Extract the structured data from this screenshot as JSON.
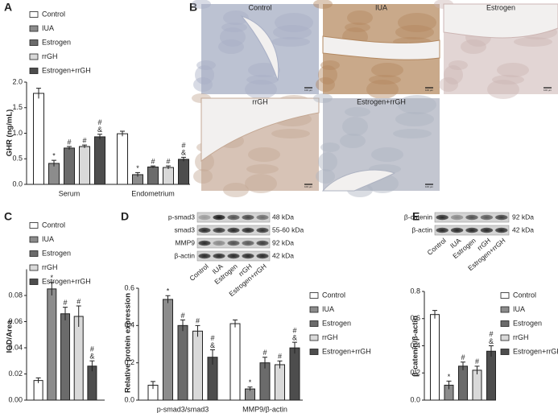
{
  "panel_b": {
    "label": "B",
    "scale_bar": "100 μm",
    "images": [
      "Control",
      "IUA",
      "Estrogen",
      "rrGH",
      "Estrogen+rrGH"
    ]
  },
  "chart_data": [
    {
      "type": "bar",
      "panel": "A",
      "ylabel": "GHR (ng/mL)",
      "categories": [
        "Serum",
        "Endometrium"
      ],
      "ylim": [
        0,
        2.0
      ],
      "yticks": [
        {
          "value": 0,
          "label": "0.0"
        },
        {
          "value": 0.5,
          "label": "0.5"
        },
        {
          "value": 1.0,
          "label": "1.0"
        },
        {
          "value": 1.5,
          "label": "1.5"
        },
        {
          "value": 2.0,
          "label": "2.0"
        }
      ],
      "series": [
        {
          "name": "Control",
          "color": "#ffffff",
          "values": [
            1.78,
            0.99
          ],
          "errors": [
            0.1,
            0.05
          ]
        },
        {
          "name": "IUA",
          "color": "#8c8c8c",
          "values": [
            0.41,
            0.19
          ],
          "errors": [
            0.06,
            0.04
          ],
          "annotations": [
            [
              "*"
            ],
            [
              "*"
            ]
          ]
        },
        {
          "name": "Estrogen",
          "color": "#6b6b6b",
          "values": [
            0.71,
            0.34
          ],
          "errors": [
            0.03,
            0.02
          ],
          "annotations": [
            [
              "#"
            ],
            [
              "#"
            ]
          ]
        },
        {
          "name": "rrGH",
          "color": "#d9d9d9",
          "values": [
            0.74,
            0.33
          ],
          "errors": [
            0.03,
            0.03
          ],
          "annotations": [
            [
              "#"
            ],
            [
              "#"
            ]
          ]
        },
        {
          "name": "Estrogen+rrGH",
          "color": "#4d4d4d",
          "values": [
            0.93,
            0.49
          ],
          "errors": [
            0.05,
            0.04
          ],
          "annotations": [
            [
              "#",
              "&"
            ],
            [
              "#",
              "&"
            ]
          ]
        }
      ]
    },
    {
      "type": "bar",
      "panel": "C",
      "ylabel": "IOD/Area",
      "ylim": [
        0,
        0.1
      ],
      "yticks": [
        {
          "value": 0,
          "label": "0.00"
        },
        {
          "value": 0.02,
          "label": "0.02"
        },
        {
          "value": 0.04,
          "label": "0.04"
        },
        {
          "value": 0.06,
          "label": "0.06"
        },
        {
          "value": 0.08,
          "label": "0.08"
        }
      ],
      "series": [
        {
          "name": "Control",
          "color": "#ffffff",
          "values": [
            0.015
          ],
          "errors": [
            0.002
          ]
        },
        {
          "name": "IUA",
          "color": "#8c8c8c",
          "values": [
            0.085
          ],
          "errors": [
            0.005
          ],
          "annotations": [
            [
              "*"
            ]
          ]
        },
        {
          "name": "Estrogen",
          "color": "#6b6b6b",
          "values": [
            0.066
          ],
          "errors": [
            0.005
          ],
          "annotations": [
            [
              "#"
            ]
          ]
        },
        {
          "name": "rrGH",
          "color": "#d9d9d9",
          "values": [
            0.064
          ],
          "errors": [
            0.008
          ],
          "annotations": [
            [
              "#"
            ]
          ]
        },
        {
          "name": "Estrogen+rrGH",
          "color": "#4d4d4d",
          "values": [
            0.026
          ],
          "errors": [
            0.004
          ],
          "annotations": [
            [
              "#",
              "&"
            ]
          ]
        }
      ]
    },
    {
      "type": "bar",
      "panel": "D",
      "ylabel": "Relative protein expression",
      "categories": [
        "p-smad3/smad3",
        "MMP9/β-actin"
      ],
      "ylim": [
        0,
        0.6
      ],
      "yticks": [
        {
          "value": 0,
          "label": "0.0"
        },
        {
          "value": 0.2,
          "label": "0.2"
        },
        {
          "value": 0.4,
          "label": "0.4"
        },
        {
          "value": 0.6,
          "label": "0.6"
        }
      ],
      "blot": {
        "rows": [
          {
            "protein": "p-smad3",
            "size": "48 kDa"
          },
          {
            "protein": "smad3",
            "size": "55-60 kDa"
          },
          {
            "protein": "MMP9",
            "size": "92 kDa"
          },
          {
            "protein": "β-actin",
            "size": "42 kDa"
          }
        ],
        "lanes": [
          "Control",
          "IUA",
          "Estrogen",
          "rrGH",
          "Estrogen+rrGH"
        ]
      },
      "series": [
        {
          "name": "Control",
          "color": "#ffffff",
          "values": [
            0.08,
            0.41
          ],
          "errors": [
            0.02,
            0.02
          ]
        },
        {
          "name": "IUA",
          "color": "#8c8c8c",
          "values": [
            0.54,
            0.06
          ],
          "errors": [
            0.02,
            0.01
          ],
          "annotations": [
            [
              "*"
            ],
            [
              "*"
            ]
          ]
        },
        {
          "name": "Estrogen",
          "color": "#6b6b6b",
          "values": [
            0.4,
            0.2
          ],
          "errors": [
            0.03,
            0.03
          ],
          "annotations": [
            [
              "#"
            ],
            [
              "#"
            ]
          ]
        },
        {
          "name": "rrGH",
          "color": "#d9d9d9",
          "values": [
            0.37,
            0.19
          ],
          "errors": [
            0.03,
            0.02
          ],
          "annotations": [
            [
              "#"
            ],
            [
              "#"
            ]
          ]
        },
        {
          "name": "Estrogen+rrGH",
          "color": "#4d4d4d",
          "values": [
            0.23,
            0.28
          ],
          "errors": [
            0.04,
            0.03
          ],
          "annotations": [
            [
              "#",
              "&"
            ],
            [
              "#",
              "&"
            ]
          ]
        }
      ]
    },
    {
      "type": "bar",
      "panel": "E",
      "ylabel": "β-catenin/β-actin",
      "ylim": [
        0,
        0.8
      ],
      "yticks": [
        {
          "value": 0,
          "label": "0.0"
        },
        {
          "value": 0.2,
          "label": "0.2"
        },
        {
          "value": 0.4,
          "label": "0.4"
        },
        {
          "value": 0.6,
          "label": "0.6"
        },
        {
          "value": 0.8,
          "label": "0.8"
        }
      ],
      "blot": {
        "rows": [
          {
            "protein": "β-catenin",
            "size": "92 kDa"
          },
          {
            "protein": "β-actin",
            "size": "42 kDa"
          }
        ],
        "lanes": [
          "Control",
          "IUA",
          "Estrogen",
          "rrGH",
          "Estrogen+rrGH"
        ]
      },
      "series": [
        {
          "name": "Control",
          "color": "#ffffff",
          "values": [
            0.63
          ],
          "errors": [
            0.03
          ]
        },
        {
          "name": "IUA",
          "color": "#8c8c8c",
          "values": [
            0.11
          ],
          "errors": [
            0.03
          ],
          "annotations": [
            [
              "*"
            ]
          ]
        },
        {
          "name": "Estrogen",
          "color": "#6b6b6b",
          "values": [
            0.25
          ],
          "errors": [
            0.03
          ],
          "annotations": [
            [
              "#"
            ]
          ]
        },
        {
          "name": "rrGH",
          "color": "#d9d9d9",
          "values": [
            0.22
          ],
          "errors": [
            0.03
          ],
          "annotations": [
            [
              "#"
            ]
          ]
        },
        {
          "name": "Estrogen+rrGH",
          "color": "#4d4d4d",
          "values": [
            0.36
          ],
          "errors": [
            0.04
          ],
          "annotations": [
            [
              "#",
              "&"
            ]
          ]
        }
      ]
    }
  ]
}
